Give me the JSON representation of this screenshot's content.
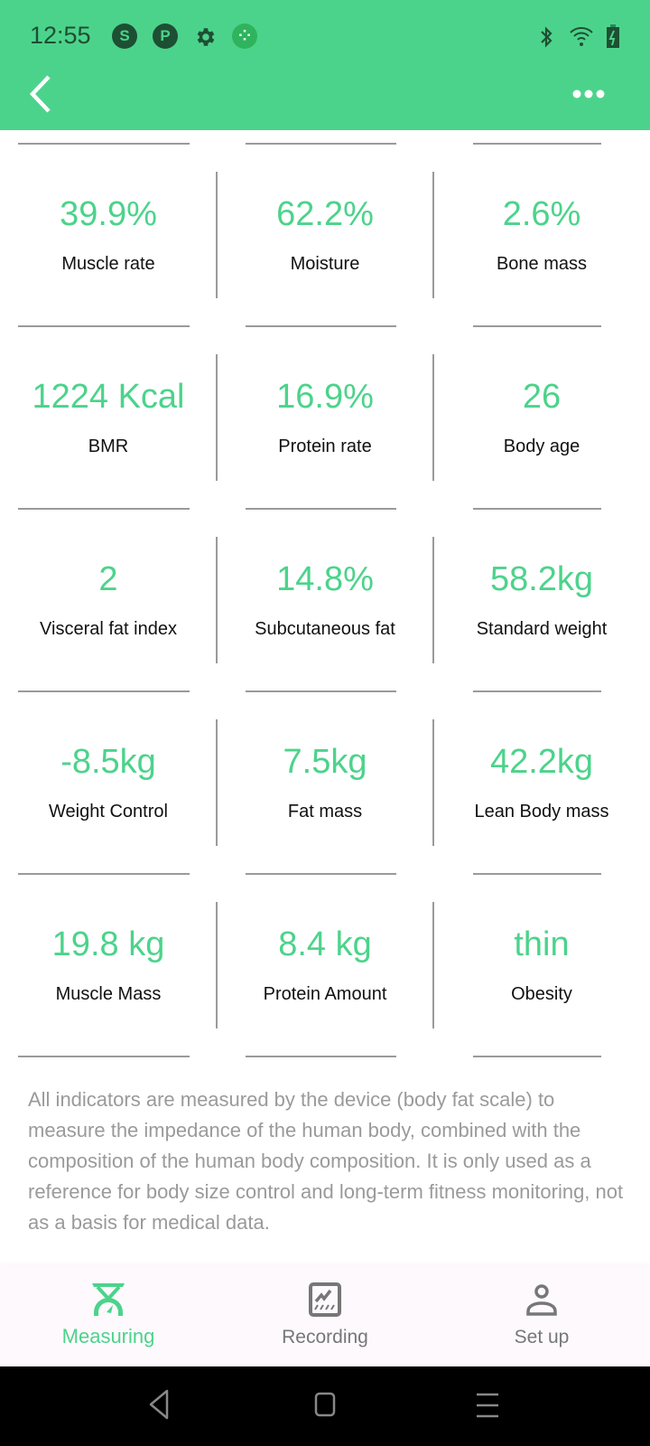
{
  "status_bar": {
    "time": "12:55",
    "notification_icons": [
      "skype-icon",
      "app-p-icon",
      "gear-icon",
      "clover-app-icon"
    ],
    "system_icons": [
      "bluetooth-icon",
      "wifi-icon",
      "battery-charging-icon"
    ]
  },
  "colors": {
    "accent": "#4cd38b",
    "header": "#4cd38b",
    "label": "#111111",
    "muted": "#9a9a9a"
  },
  "metrics": [
    [
      {
        "value": "39.9%",
        "label": "Muscle rate"
      },
      {
        "value": "62.2%",
        "label": "Moisture"
      },
      {
        "value": "2.6%",
        "label": "Bone mass"
      }
    ],
    [
      {
        "value": "1224 Kcal",
        "label": "BMR"
      },
      {
        "value": "16.9%",
        "label": "Protein rate"
      },
      {
        "value": "26",
        "label": "Body age"
      }
    ],
    [
      {
        "value": "2",
        "label": "Visceral fat index"
      },
      {
        "value": "14.8%",
        "label": "Subcutaneous fat"
      },
      {
        "value": "58.2kg",
        "label": "Standard weight"
      }
    ],
    [
      {
        "value": "-8.5kg",
        "label": "Weight Control"
      },
      {
        "value": "7.5kg",
        "label": "Fat mass"
      },
      {
        "value": "42.2kg",
        "label": "Lean Body mass"
      }
    ],
    [
      {
        "value": "19.8 kg",
        "label": "Muscle Mass"
      },
      {
        "value": "8.4 kg",
        "label": "Protein Amount"
      },
      {
        "value": "thin",
        "label": "Obesity"
      }
    ]
  ],
  "disclaimer": "All indicators are measured by the device (body fat scale) to measure the impedance of the human body, combined with the composition of the human body composition. It is only used as a reference for body size control and long-term fitness monitoring, not as a basis for medical data.",
  "bottom_nav": [
    {
      "label": "Measuring",
      "icon": "scale-icon",
      "active": true
    },
    {
      "label": "Recording",
      "icon": "chart-icon",
      "active": false
    },
    {
      "label": "Set up",
      "icon": "person-icon",
      "active": false
    }
  ]
}
